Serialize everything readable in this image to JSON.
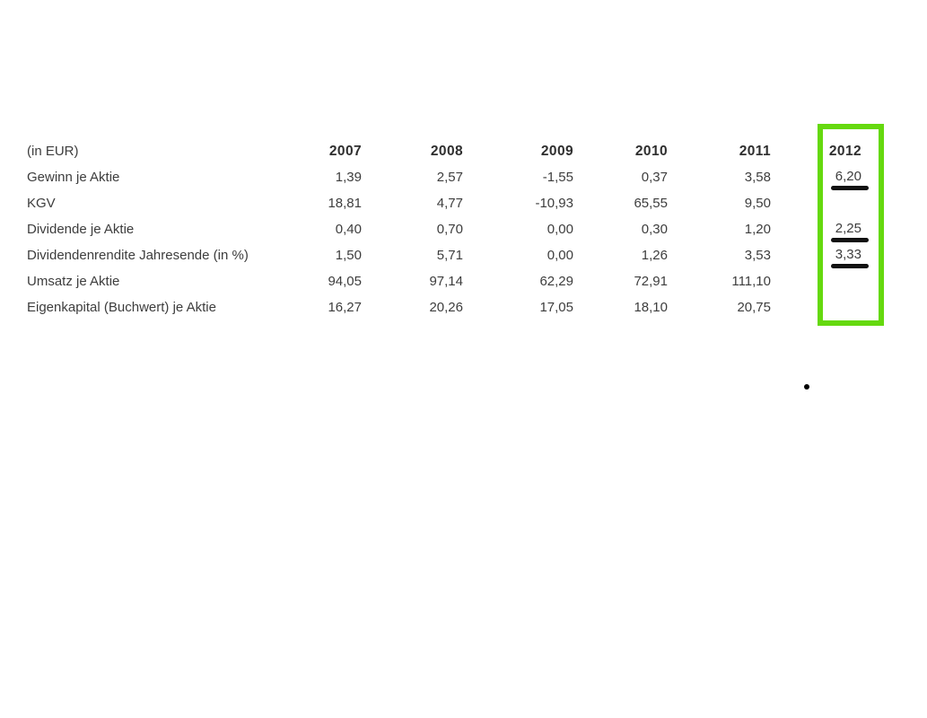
{
  "page": {
    "background_color": "#ffffff"
  },
  "table": {
    "unit_label": "(in EUR)",
    "years": [
      "2007",
      "2008",
      "2009",
      "2010",
      "2011",
      "2012"
    ],
    "rows": [
      {
        "label": "Gewinn je Aktie",
        "values": [
          "1,39",
          "2,57",
          "-1,55",
          "0,37",
          "3,58",
          "6,20"
        ]
      },
      {
        "label": "KGV",
        "values": [
          "18,81",
          "4,77",
          "-10,93",
          "65,55",
          "9,50",
          ""
        ]
      },
      {
        "label": "Dividende je Aktie",
        "values": [
          "0,40",
          "0,70",
          "0,00",
          "0,30",
          "1,20",
          "2,25"
        ]
      },
      {
        "label": "Dividendenrendite Jahresende (in %)",
        "values": [
          "1,50",
          "5,71",
          "0,00",
          "1,26",
          "3,53",
          "3,33"
        ]
      },
      {
        "label": "Umsatz je Aktie",
        "values": [
          "94,05",
          "97,14",
          "62,29",
          "72,91",
          "111,10",
          ""
        ]
      },
      {
        "label": "Eigenkapital (Buchwert) je Aktie",
        "values": [
          "16,27",
          "20,26",
          "17,05",
          "18,10",
          "20,75",
          ""
        ]
      }
    ]
  },
  "annotations": {
    "highlight_box_color": "#65d90e",
    "underline_mark_color": "#111111",
    "underlined_answers": [
      "6,20",
      "2,25",
      "3,33"
    ]
  }
}
